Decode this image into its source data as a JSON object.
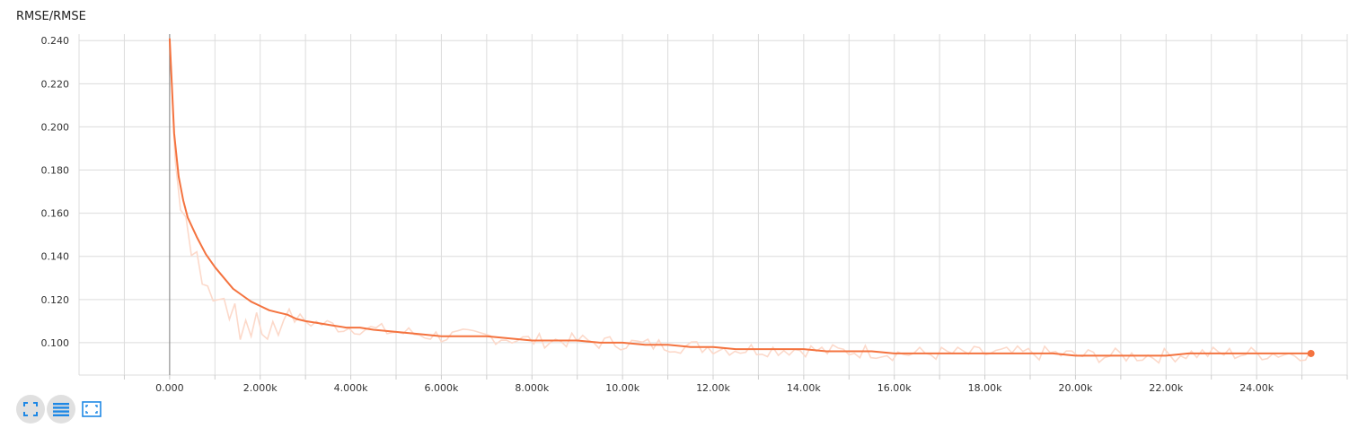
{
  "card": {
    "title": "RMSE/RMSE"
  },
  "colors": {
    "series": "#f4733f",
    "series_raw": "#fcd9ca",
    "grid": "#dcdcdc",
    "zero_line": "#999999",
    "icon": "#1e88e5"
  },
  "toolbar": [
    {
      "name": "fit-domain-icon",
      "active": true
    },
    {
      "name": "toggle-log-scale-icon",
      "active": true
    },
    {
      "name": "expand-chart-icon",
      "active": false
    }
  ],
  "chart_data": {
    "type": "line",
    "title": "RMSE/RMSE",
    "xlabel": "",
    "ylabel": "",
    "xlim": [
      -2000,
      26000
    ],
    "ylim": [
      0.085,
      0.243
    ],
    "grid": true,
    "x_ticks": [
      0,
      2000,
      4000,
      6000,
      8000,
      10000,
      12000,
      14000,
      16000,
      18000,
      20000,
      22000,
      24000
    ],
    "x_tick_labels": [
      "0.000",
      "2.000k",
      "4.000k",
      "6.000k",
      "8.000k",
      "10.00k",
      "12.00k",
      "14.00k",
      "16.00k",
      "18.00k",
      "20.00k",
      "22.00k",
      "24.00k"
    ],
    "y_ticks": [
      0.1,
      0.12,
      0.14,
      0.16,
      0.18,
      0.2,
      0.22,
      0.24
    ],
    "y_tick_labels": [
      "0.100",
      "0.120",
      "0.140",
      "0.160",
      "0.180",
      "0.200",
      "0.220",
      "0.240"
    ],
    "series": [
      {
        "x": [
          0,
          100,
          200,
          300,
          400,
          600,
          800,
          1000,
          1200,
          1400,
          1600,
          1800,
          2000,
          2200,
          2400,
          2600,
          2800,
          3000,
          3300,
          3600,
          3900,
          4200,
          4500,
          5000,
          5500,
          6000,
          6500,
          7000,
          7500,
          8000,
          8500,
          9000,
          9500,
          10000,
          10500,
          11000,
          11500,
          12000,
          12500,
          13000,
          13500,
          14000,
          14500,
          15000,
          15500,
          16000,
          16500,
          17000,
          17500,
          18000,
          18500,
          19000,
          19500,
          20000,
          20500,
          21000,
          21500,
          22000,
          22500,
          23000,
          23500,
          24000,
          24500,
          25200
        ],
        "values": [
          0.241,
          0.197,
          0.177,
          0.166,
          0.158,
          0.149,
          0.141,
          0.135,
          0.13,
          0.125,
          0.122,
          0.119,
          0.117,
          0.115,
          0.114,
          0.113,
          0.111,
          0.11,
          0.109,
          0.108,
          0.107,
          0.107,
          0.106,
          0.105,
          0.104,
          0.103,
          0.103,
          0.103,
          0.102,
          0.101,
          0.101,
          0.101,
          0.1,
          0.1,
          0.099,
          0.099,
          0.098,
          0.098,
          0.097,
          0.097,
          0.097,
          0.097,
          0.096,
          0.096,
          0.096,
          0.095,
          0.095,
          0.095,
          0.095,
          0.095,
          0.095,
          0.095,
          0.095,
          0.094,
          0.094,
          0.094,
          0.094,
          0.094,
          0.095,
          0.095,
          0.095,
          0.095,
          0.095,
          0.095
        ]
      }
    ]
  }
}
